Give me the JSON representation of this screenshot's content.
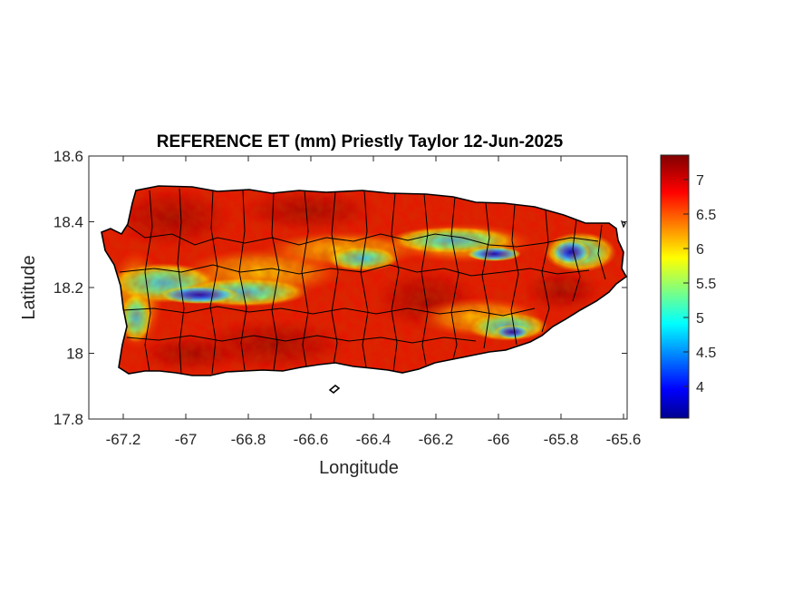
{
  "chart_data": {
    "type": "heatmap",
    "title": "REFERENCE ET (mm) Priestly Taylor 12-Jun-2025",
    "xlabel": "Longitude",
    "ylabel": "Latitude",
    "xlim": [
      -67.3,
      -65.58
    ],
    "ylim": [
      17.8,
      18.6
    ],
    "xticks": [
      -67.2,
      -67,
      -66.8,
      -66.6,
      -66.4,
      -66.2,
      -66,
      -65.8,
      -65.6
    ],
    "xtick_labels": [
      "-67.2",
      "-67",
      "-66.8",
      "-66.6",
      "-66.4",
      "-66.2",
      "-66",
      "-65.8",
      "-65.6"
    ],
    "yticks": [
      17.8,
      18,
      18.2,
      18.4,
      18.6
    ],
    "ytick_labels": [
      "17.8",
      "18",
      "18.2",
      "18.4",
      "18.6"
    ],
    "colorbar": {
      "colormap": "jet",
      "range": [
        3.55,
        7.4
      ],
      "ticks": [
        4,
        4.5,
        5,
        5.5,
        6,
        6.5,
        7
      ],
      "tick_labels": [
        "4",
        "4.5",
        "5",
        "5.5",
        "6",
        "6.5",
        "7"
      ]
    },
    "grid": false,
    "description_values": {
      "dominant_range": [
        6.8,
        7.4
      ],
      "min_region_value": 3.7
    }
  }
}
